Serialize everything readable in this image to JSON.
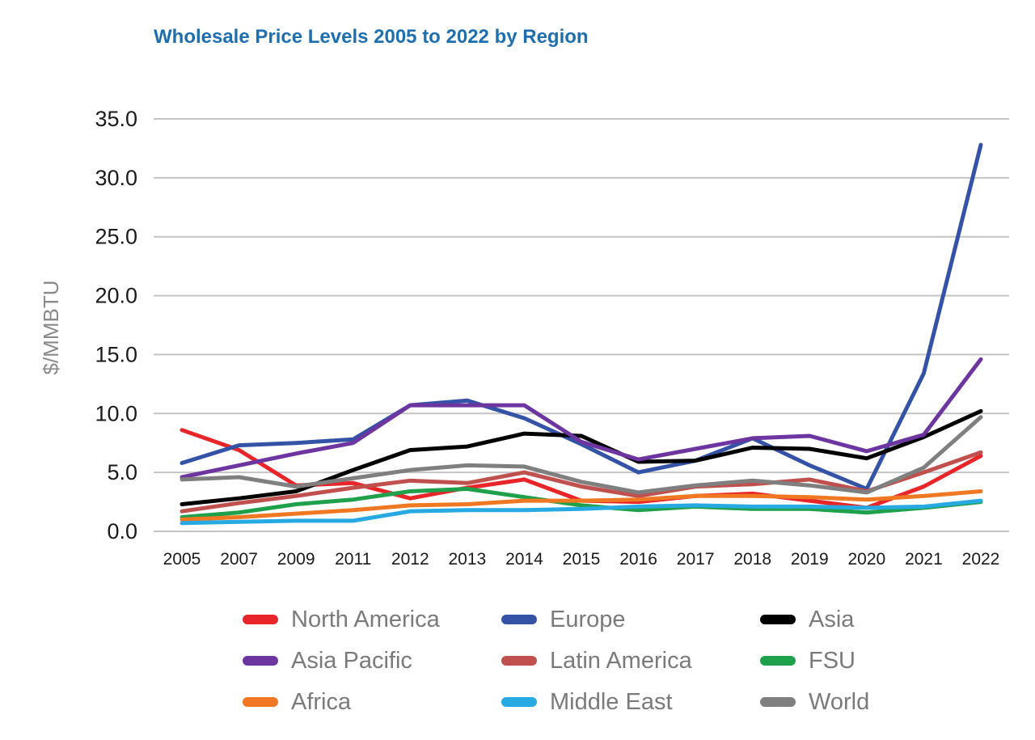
{
  "chart_data": {
    "type": "line",
    "title": "Wholesale Price Levels 2005 to 2022 by Region",
    "xlabel": "",
    "ylabel": "$/MMBTU",
    "ylim": [
      0,
      35
    ],
    "yticks": [
      "0.0",
      "5.0",
      "10.0",
      "15.0",
      "20.0",
      "25.0",
      "30.0",
      "35.0"
    ],
    "grid": true,
    "legend_position": "bottom",
    "categories": [
      "2005",
      "2007",
      "2009",
      "2011",
      "2012",
      "2013",
      "2014",
      "2015",
      "2016",
      "2017",
      "2018",
      "2019",
      "2020",
      "2021",
      "2022"
    ],
    "series": [
      {
        "name": "North America",
        "color": "#e8262a",
        "values": [
          8.6,
          6.9,
          3.9,
          4.1,
          2.8,
          3.7,
          4.4,
          2.6,
          2.5,
          3.0,
          3.2,
          2.6,
          2.0,
          3.8,
          6.4
        ]
      },
      {
        "name": "Europe",
        "color": "#3553a6",
        "values": [
          5.8,
          7.3,
          7.5,
          7.8,
          10.7,
          11.1,
          9.6,
          7.4,
          5.0,
          6.0,
          7.9,
          5.6,
          3.6,
          13.4,
          32.8
        ]
      },
      {
        "name": "Asia",
        "color": "#000000",
        "values": [
          2.3,
          2.8,
          3.4,
          5.2,
          6.9,
          7.2,
          8.3,
          8.1,
          5.9,
          6.0,
          7.1,
          7.0,
          6.2,
          8.0,
          10.2
        ]
      },
      {
        "name": "Asia Pacific",
        "color": "#6d35a0",
        "values": [
          4.6,
          5.6,
          6.6,
          7.5,
          10.7,
          10.7,
          10.7,
          7.6,
          6.1,
          7.0,
          7.9,
          8.1,
          6.8,
          8.2,
          14.6
        ]
      },
      {
        "name": "Latin America",
        "color": "#c0504d",
        "values": [
          1.7,
          2.4,
          3.0,
          3.7,
          4.3,
          4.1,
          5.0,
          3.8,
          3.0,
          3.8,
          4.0,
          4.4,
          3.4,
          5.0,
          6.7
        ]
      },
      {
        "name": "FSU",
        "color": "#1fa04a",
        "values": [
          1.2,
          1.6,
          2.3,
          2.7,
          3.4,
          3.6,
          2.9,
          2.2,
          1.8,
          2.1,
          1.9,
          1.9,
          1.6,
          2.0,
          2.5
        ]
      },
      {
        "name": "Africa",
        "color": "#f07822",
        "values": [
          1.0,
          1.2,
          1.5,
          1.8,
          2.2,
          2.3,
          2.6,
          2.6,
          2.7,
          3.0,
          3.0,
          2.9,
          2.7,
          3.0,
          3.4
        ]
      },
      {
        "name": "Middle East",
        "color": "#27aae1",
        "values": [
          0.7,
          0.8,
          0.9,
          0.9,
          1.7,
          1.8,
          1.8,
          1.9,
          2.1,
          2.2,
          2.1,
          2.1,
          2.0,
          2.1,
          2.6
        ]
      },
      {
        "name": "World",
        "color": "#7f7f7f",
        "values": [
          4.4,
          4.6,
          3.8,
          4.5,
          5.2,
          5.6,
          5.5,
          4.2,
          3.3,
          3.9,
          4.3,
          3.9,
          3.3,
          5.4,
          9.7
        ]
      }
    ]
  }
}
